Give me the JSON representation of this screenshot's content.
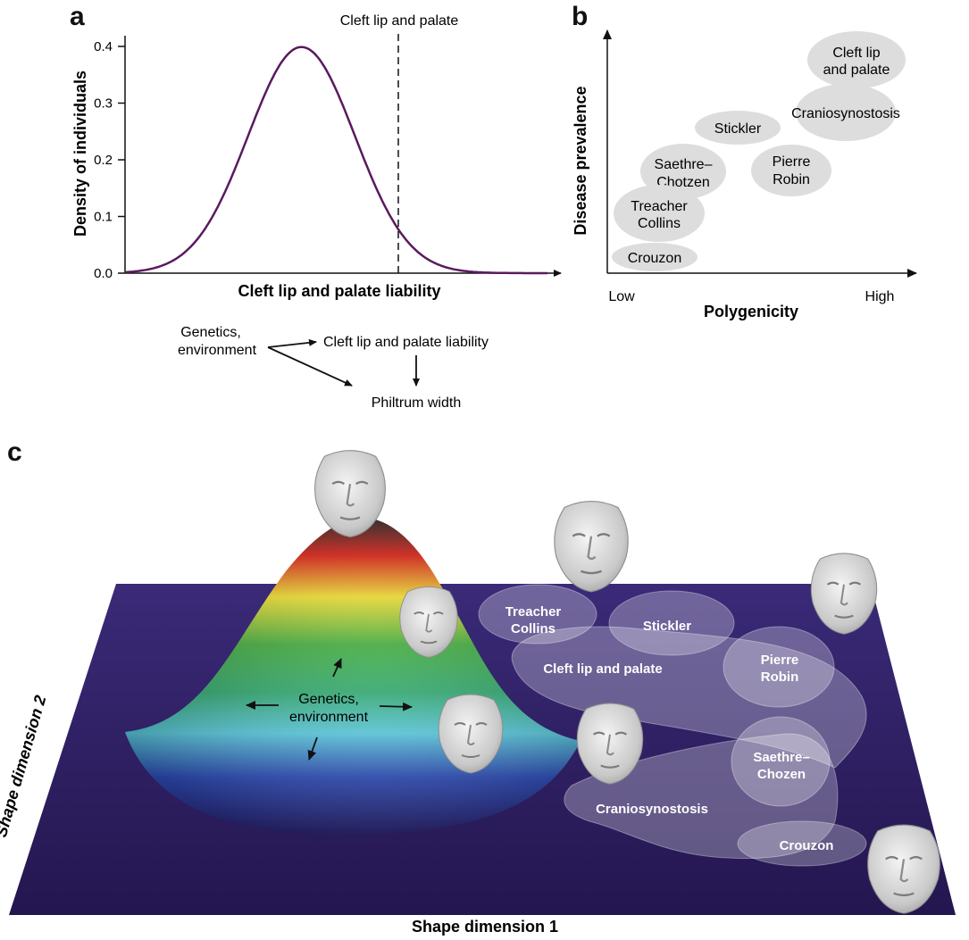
{
  "panel_a": {
    "letter": "a",
    "threshold_label": "Cleft lip and palate",
    "ylabel": "Density of individuals",
    "xlabel": "Cleft lip and palate liability",
    "yticks": [
      "0.0",
      "0.1",
      "0.2",
      "0.3",
      "0.4"
    ],
    "flow": {
      "source_line1": "Genetics,",
      "source_line2": "environment",
      "target1": "Cleft lip and palate liability",
      "target2": "Philtrum width"
    }
  },
  "panel_b": {
    "letter": "b",
    "ylabel": "Disease prevalence",
    "xlabel": "Polygenicity",
    "x_low": "Low",
    "x_high": "High",
    "bubbles": [
      {
        "id": "cleft",
        "line1": "Cleft lip",
        "line2": "and palate"
      },
      {
        "id": "cranio",
        "line1": "Craniosynostosis",
        "line2": ""
      },
      {
        "id": "stickler",
        "line1": "Stickler",
        "line2": ""
      },
      {
        "id": "saethre",
        "line1": "Saethre–",
        "line2": "Chotzen"
      },
      {
        "id": "pierre",
        "line1": "Pierre",
        "line2": "Robin"
      },
      {
        "id": "treacher",
        "line1": "Treacher",
        "line2": "Collins"
      },
      {
        "id": "crouzon",
        "line1": "Crouzon",
        "line2": ""
      }
    ]
  },
  "panel_c": {
    "letter": "c",
    "ylabel": "Shape dimension 2",
    "xlabel": "Shape dimension 1",
    "center_line1": "Genetics,",
    "center_line2": "environment",
    "regions": [
      {
        "id": "treacher",
        "line1": "Treacher",
        "line2": "Collins"
      },
      {
        "id": "stickler",
        "line1": "Stickler",
        "line2": ""
      },
      {
        "id": "cleft",
        "line1": "Cleft lip and palate",
        "line2": ""
      },
      {
        "id": "pierre",
        "line1": "Pierre",
        "line2": "Robin"
      },
      {
        "id": "saethre",
        "line1": "Saethre–",
        "line2": "Chozen"
      },
      {
        "id": "cranio",
        "line1": "Craniosynostosis",
        "line2": ""
      },
      {
        "id": "crouzon",
        "line1": "Crouzon",
        "line2": ""
      }
    ],
    "colors": {
      "plane": "#2c1b63",
      "curve": "#5a1a5e",
      "region": "#ffffff"
    }
  }
}
